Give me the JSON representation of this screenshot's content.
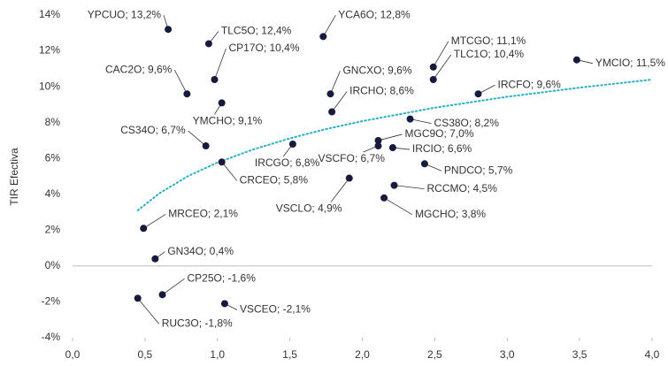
{
  "chart_data": {
    "type": "scatter",
    "ylabel": "TIR Efectiva",
    "color": "#161b3d",
    "x": [
      0.66,
      0.94,
      1.73,
      2.49,
      2.49,
      3.48,
      0.79,
      0.98,
      1.78,
      1.79,
      2.8,
      1.03,
      0.92,
      2.33,
      1.52,
      2.11,
      2.11,
      2.21,
      1.03,
      2.43,
      2.22,
      1.91,
      2.15,
      0.49,
      0.57,
      0.62,
      1.05,
      0.45
    ],
    "values": [
      13.2,
      12.4,
      12.8,
      11.1,
      10.4,
      11.5,
      9.6,
      10.4,
      9.6,
      8.6,
      9.6,
      9.1,
      6.7,
      8.2,
      6.8,
      7.0,
      6.7,
      6.6,
      5.8,
      5.7,
      4.5,
      4.9,
      3.8,
      2.1,
      0.4,
      -1.6,
      -2.1,
      -1.8
    ],
    "value_labels": [
      "YPCUO; 13,2%",
      "TLC5O; 12,4%",
      "YCA6O; 12,8%",
      "MTCGO; 11,1%",
      "TLC1O; 10,4%",
      "YMCIO; 11,5%",
      "CAC2O; 9,6%",
      "CP17O; 10,4%",
      "GNCXO; 9,6%",
      "IRCHO; 8,6%",
      "IRCFO; 9,6%",
      "YMCHO; 9,1%",
      "CS34O; 6,7%",
      "CS38O; 8,2%",
      "IRCGO; 6,8%",
      "MGC9O; 7,0%",
      "VSCFO; 6,7%",
      "IRCIO; 6,6%",
      "CRCEO; 5,8%",
      "PNDCO; 5,7%",
      "RCCMO; 4,5%",
      "VSCLO; 4,9%",
      "MGCHO; 3,8%",
      "MRCEO; 2,1%",
      "GN34O; 0,4%",
      "CP25O; -1,6%",
      "VSCEO; -2,1%",
      "RUC3O; -1,8%"
    ],
    "trendline": {
      "color": "#2ab0c5",
      "x": [
        0.45,
        0.6,
        0.8,
        1.0,
        1.25,
        1.5,
        1.75,
        2.0,
        2.5,
        3.0,
        3.5,
        4.0
      ],
      "values": [
        3.1,
        4.06,
        5.03,
        5.77,
        6.51,
        7.12,
        7.64,
        8.08,
        8.83,
        9.44,
        9.95,
        10.4
      ]
    },
    "xlim": [
      0,
      4
    ],
    "xticks": [
      {
        "value": 0,
        "label": "0,0"
      },
      {
        "value": 0.5,
        "label": "0,5"
      },
      {
        "value": 1,
        "label": "1,0"
      },
      {
        "value": 1.5,
        "label": "1,5"
      },
      {
        "value": 2,
        "label": "2,0"
      },
      {
        "value": 2.5,
        "label": "2,5"
      },
      {
        "value": 3,
        "label": "3,0"
      },
      {
        "value": 3.5,
        "label": "3,5"
      },
      {
        "value": 4,
        "label": "4,0"
      }
    ],
    "ylim": [
      -4,
      14
    ],
    "yticks": [
      {
        "value": -4,
        "label": "-4%"
      },
      {
        "value": -2,
        "label": "-2%"
      },
      {
        "value": 0,
        "label": "0%"
      },
      {
        "value": 2,
        "label": "2%"
      },
      {
        "value": 4,
        "label": "4%"
      },
      {
        "value": 6,
        "label": "6%"
      },
      {
        "value": 8,
        "label": "8%"
      },
      {
        "value": 10,
        "label": "10%"
      },
      {
        "value": 12,
        "label": "12%"
      },
      {
        "value": 14,
        "label": "14%"
      }
    ]
  }
}
